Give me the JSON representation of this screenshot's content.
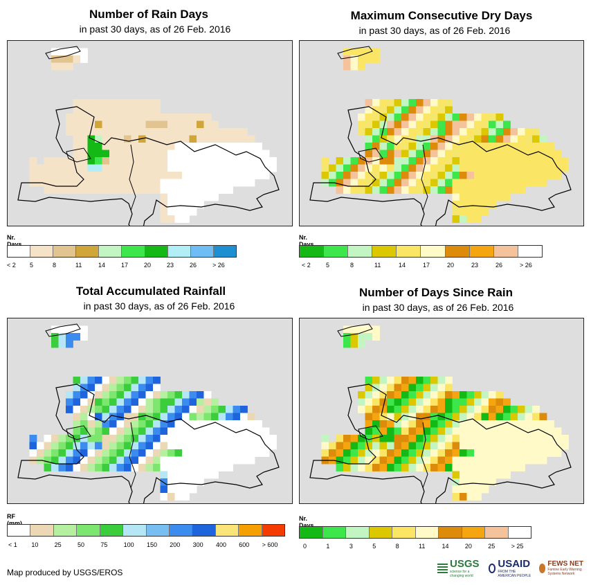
{
  "panels": [
    {
      "title": "Number of Rain Days",
      "subtitle": "in past 30 days, as of 26 Feb. 2016",
      "legend_title": "Nr. Days",
      "legend_labels": [
        "< 2",
        "5",
        "8",
        "11",
        "14",
        "17",
        "20",
        "23",
        "26",
        "> 26"
      ],
      "legend_colors": [
        "#ffffff",
        "#f5e3c8",
        "#e1c48f",
        "#d0a53a",
        "#c3f5c3",
        "#3ce64b",
        "#15b915",
        "#b2eef5",
        "#6ebef5",
        "#1e8fd0"
      ],
      "grid_palette": [
        "#dedede",
        "#ffffff",
        "#f5e3c8",
        "#e1c48f",
        "#d0a53a",
        "#c3f5c3",
        "#3ce64b",
        "#15b915",
        "#b2eef5"
      ]
    },
    {
      "title": "Maximum Consecutive Dry Days",
      "subtitle": "in past 30 days, as of 26 Feb. 2016",
      "legend_title": "Nr. Days",
      "legend_labels": [
        "< 2",
        "5",
        "8",
        "11",
        "14",
        "17",
        "20",
        "23",
        "26",
        "> 26"
      ],
      "legend_colors": [
        "#15b915",
        "#3ce64b",
        "#c3f5c3",
        "#dcc800",
        "#fae664",
        "#fffac8",
        "#dc8c0a",
        "#f5a50f",
        "#f5c39b",
        "#ffffff"
      ],
      "grid_palette": [
        "#dedede",
        "#fae664",
        "#f5e66e",
        "#dcc800",
        "#c3f5c3",
        "#3ce64b",
        "#dc8c0a",
        "#f5c39b",
        "#fffac8"
      ]
    },
    {
      "title": "Total Accumulated Rainfall",
      "subtitle": "in past 30 days, as of 26 Feb. 2016",
      "legend_title": "RF (mm)",
      "legend_labels": [
        "< 1",
        "10",
        "25",
        "50",
        "75",
        "100",
        "150",
        "200",
        "300",
        "400",
        "600",
        "> 600"
      ],
      "legend_colors": [
        "#ffffff",
        "#ecd8b4",
        "#b4f0a0",
        "#7de66e",
        "#3ccd3c",
        "#b4e6f5",
        "#78bef0",
        "#3c8cf0",
        "#1e64dc",
        "#fae678",
        "#f5a000",
        "#f53c00"
      ],
      "grid_palette": [
        "#dedede",
        "#ffffff",
        "#ecd8b4",
        "#b4f0a0",
        "#7de66e",
        "#3ccd3c",
        "#b4e6f5",
        "#3c8cf0",
        "#1e64dc"
      ]
    },
    {
      "title": "Number of Days Since Rain",
      "subtitle": "in past 30 days, as of 26 Feb. 2016",
      "legend_title": "Nr. Days",
      "legend_labels": [
        "0",
        "1",
        "3",
        "5",
        "8",
        "11",
        "14",
        "20",
        "25",
        "> 25"
      ],
      "legend_colors": [
        "#15b915",
        "#3ce64b",
        "#c3f5c3",
        "#dcc800",
        "#fae664",
        "#fffac8",
        "#dc8c0a",
        "#f5a50f",
        "#f5c39b",
        "#ffffff"
      ],
      "grid_palette": [
        "#dedede",
        "#fffac8",
        "#fae664",
        "#dc8c0a",
        "#f5a50f",
        "#15b915",
        "#3ce64b",
        "#dcc800",
        "#c3f5c3"
      ]
    }
  ],
  "grid_rows": [
    "000000000000000000000000000000000000000",
    "000000111110000000000000000000000000000",
    "000000333210000000000000000000000000000",
    "000000222000000000000000000000000000000",
    "000000000000000000000000000000000000000",
    "000000000000000000000000000000000000000",
    "000000000000000000000000000000000000000",
    "000000000000000000000000000000000000000",
    "000000000222222222222000000000000000000",
    "000000000222222222222000000000000000000",
    "000000002222222222222222222200000000000",
    "000000002222422222233322224220000000000",
    "000000002222222222222222222222222000000",
    "000000000227522232422222242222222200000",
    "000000000227722222222221111111111110000",
    "000000000227772222222211111111111111000",
    "000202222227632222222211111111111111100",
    "000222222228822222222211111111111111100",
    "000222222222222222222222111111111111000",
    "000222222222222222222111111111111100000",
    "000002222222222222222111111111100000000",
    "000000000000000000000211111110000000000",
    "000000000000000000000211111000000000000",
    "000000000000000000000211110000000000000",
    "000000000000000000000221100000000000000",
    "000000000000000000000000000000000000000"
  ],
  "legend_extra_labels": [],
  "footer": "Map produced by USGS/EROS",
  "logos": {
    "usgs": "USGS",
    "usgs_tag": "science for a changing world",
    "usaid": "USAID",
    "usaid_tag": "FROM THE AMERICAN PEOPLE",
    "fews": "FEWS NET",
    "fews_tag": "Famine Early Warning Systems Network"
  }
}
